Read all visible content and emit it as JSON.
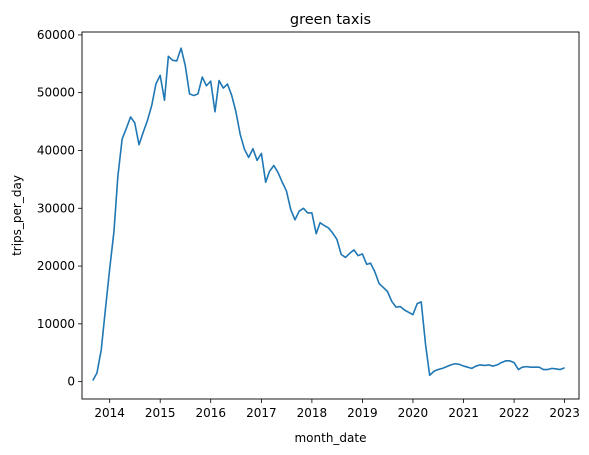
{
  "chart_data": {
    "type": "line",
    "title": "green taxis",
    "xlabel": "month_date",
    "ylabel": "trips_per_day",
    "xlim": [
      "2013-06-15",
      "2023-04-15"
    ],
    "ylim": [
      -3000,
      60500
    ],
    "x_ticks": [
      "2014",
      "2015",
      "2016",
      "2017",
      "2018",
      "2019",
      "2020",
      "2021",
      "2022",
      "2023"
    ],
    "y_ticks": [
      0,
      10000,
      20000,
      30000,
      40000,
      50000,
      60000
    ],
    "y_tick_labels": [
      "0",
      "10000",
      "20000",
      "30000",
      "40000",
      "50000",
      "60000"
    ],
    "grid": false,
    "color": "#1f77b4",
    "series": [
      {
        "x": [
          "2013-09-01",
          "2013-10-01",
          "2013-11-01",
          "2013-12-01",
          "2014-01-01",
          "2014-02-01",
          "2014-03-01",
          "2014-04-01",
          "2014-05-01",
          "2014-06-01",
          "2014-07-01",
          "2014-08-01",
          "2014-09-01",
          "2014-10-01",
          "2014-11-01",
          "2014-12-01",
          "2015-01-01",
          "2015-02-01",
          "2015-03-01",
          "2015-04-01",
          "2015-05-01",
          "2015-06-01",
          "2015-07-01",
          "2015-08-01",
          "2015-09-01",
          "2015-10-01",
          "2015-11-01",
          "2015-12-01",
          "2016-01-01",
          "2016-02-01",
          "2016-03-01",
          "2016-04-01",
          "2016-05-01",
          "2016-06-01",
          "2016-07-01",
          "2016-08-01",
          "2016-09-01",
          "2016-10-01",
          "2016-11-01",
          "2016-12-01",
          "2017-01-01",
          "2017-02-01",
          "2017-03-01",
          "2017-04-01",
          "2017-05-01",
          "2017-06-01",
          "2017-07-01",
          "2017-08-01",
          "2017-09-01",
          "2017-10-01",
          "2017-11-01",
          "2017-12-01",
          "2018-01-01",
          "2018-02-01",
          "2018-03-01",
          "2018-04-01",
          "2018-05-01",
          "2018-06-01",
          "2018-07-01",
          "2018-08-01",
          "2018-09-01",
          "2018-10-01",
          "2018-11-01",
          "2018-12-01",
          "2019-01-01",
          "2019-02-01",
          "2019-03-01",
          "2019-04-01",
          "2019-05-01",
          "2019-06-01",
          "2019-07-01",
          "2019-08-01",
          "2019-09-01",
          "2019-10-01",
          "2019-11-01",
          "2019-12-01",
          "2020-01-01",
          "2020-02-01",
          "2020-03-01",
          "2020-04-01",
          "2020-05-01",
          "2020-06-01",
          "2020-07-01",
          "2020-08-01",
          "2020-09-01",
          "2020-10-01",
          "2020-11-01",
          "2020-12-01",
          "2021-01-01",
          "2021-02-01",
          "2021-03-01",
          "2021-04-01",
          "2021-05-01",
          "2021-06-01",
          "2021-07-01",
          "2021-08-01",
          "2021-09-01",
          "2021-10-01",
          "2021-11-01",
          "2021-12-01",
          "2022-01-01",
          "2022-02-01",
          "2022-03-01",
          "2022-04-01",
          "2022-05-01",
          "2022-06-01",
          "2022-07-01",
          "2022-08-01",
          "2022-09-01",
          "2022-10-01",
          "2022-11-01",
          "2022-12-01",
          "2023-01-01"
        ],
        "y": [
          200,
          1500,
          5500,
          12500,
          19500,
          26000,
          35500,
          42000,
          43800,
          45800,
          44800,
          41000,
          43200,
          45200,
          47800,
          51500,
          53000,
          48700,
          56300,
          55600,
          55500,
          57700,
          54700,
          49800,
          49500,
          49800,
          52700,
          51200,
          52000,
          46700,
          52100,
          50800,
          51500,
          49500,
          46700,
          42800,
          40200,
          38800,
          40300,
          38300,
          39500,
          34500,
          36400,
          37400,
          36200,
          34500,
          33000,
          29800,
          28000,
          29500,
          30000,
          29200,
          29200,
          25600,
          27500,
          27000,
          26600,
          25700,
          24600,
          22000,
          21500,
          22200,
          22800,
          21800,
          22100,
          20300,
          20500,
          19000,
          17000,
          16300,
          15600,
          13900,
          12900,
          13000,
          12400,
          12000,
          11600,
          13500,
          13800,
          6500,
          1100,
          1800,
          2100,
          2300,
          2600,
          2900,
          3100,
          3000,
          2700,
          2500,
          2300,
          2700,
          2900,
          2800,
          2900,
          2700,
          2900,
          3300,
          3600,
          3600,
          3300,
          2100,
          2500,
          2600,
          2500,
          2500,
          2500,
          2100,
          2100,
          2300,
          2200,
          2100,
          2400
        ]
      }
    ]
  }
}
